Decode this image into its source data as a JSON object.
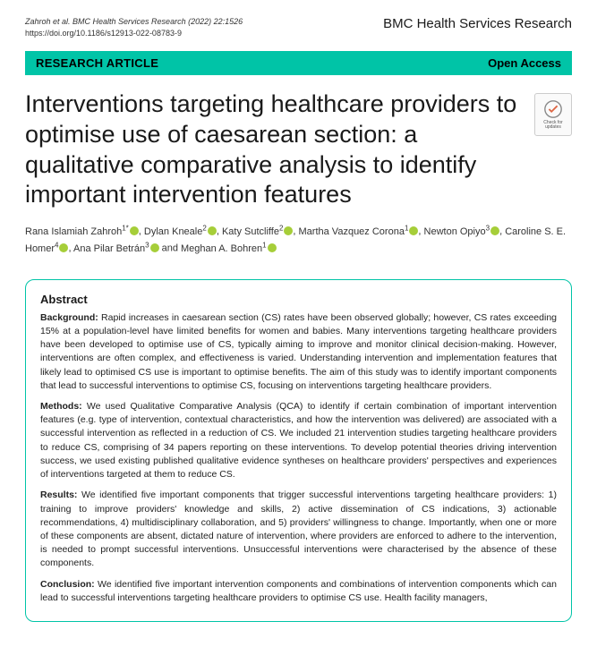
{
  "header": {
    "citation_line1": "Zahroh et al. BMC Health Services Research          (2022) 22:1526",
    "doi": "https://doi.org/10.1186/s12913-022-08783-9",
    "journal": "BMC Health Services Research"
  },
  "banner": {
    "article_type": "RESEARCH ARTICLE",
    "access": "Open Access"
  },
  "title": "Interventions targeting healthcare providers to optimise use of caesarean section: a qualitative comparative analysis to identify important intervention features",
  "check_updates": {
    "label": "Check for updates"
  },
  "authors": [
    {
      "name": "Rana Islamiah Zahroh",
      "aff": "1*",
      "orcid": true
    },
    {
      "name": "Dylan Kneale",
      "aff": "2",
      "orcid": true
    },
    {
      "name": "Katy Sutcliffe",
      "aff": "2",
      "orcid": true
    },
    {
      "name": "Martha Vazquez Corona",
      "aff": "1",
      "orcid": true
    },
    {
      "name": "Newton Opiyo",
      "aff": "3",
      "orcid": true
    },
    {
      "name": "Caroline S. E. Homer",
      "aff": "4",
      "orcid": true
    },
    {
      "name": "Ana Pilar Betrán",
      "aff": "3",
      "orcid": true
    },
    {
      "name": "Meghan A. Bohren",
      "aff": "1",
      "orcid": true
    }
  ],
  "abstract": {
    "heading": "Abstract",
    "sections": [
      {
        "label": "Background:",
        "text": "Rapid increases in caesarean section (CS) rates have been observed globally; however, CS rates exceeding 15% at a population-level have limited benefits for women and babies. Many interventions targeting healthcare providers have been developed to optimise use of CS, typically aiming to improve and monitor clinical decision-making. However, interventions are often complex, and effectiveness is varied. Understanding intervention and implementation features that likely lead to optimised CS use is important to optimise benefits. The aim of this study was to identify important components that lead to successful interventions to optimise CS, focusing on interventions targeting healthcare providers."
      },
      {
        "label": "Methods:",
        "text": "We used Qualitative Comparative Analysis (QCA) to identify if certain combination of important intervention features (e.g. type of intervention, contextual characteristics, and how the intervention was delivered) are associated with a successful intervention as reflected in a reduction of CS. We included 21 intervention studies targeting healthcare providers to reduce CS, comprising of 34 papers reporting on these interventions. To develop potential theories driving intervention success, we used existing published qualitative evidence syntheses on healthcare providers' perspectives and experiences of interventions targeted at them to reduce CS."
      },
      {
        "label": "Results:",
        "text": "We identified five important components that trigger successful interventions targeting healthcare providers: 1) training to improve providers' knowledge and skills, 2) active dissemination of CS indications, 3) actionable recommendations, 4) multidisciplinary collaboration, and 5) providers' willingness to change. Importantly, when one or more of these components are absent, dictated nature of intervention, where providers are enforced to adhere to the intervention, is needed to prompt successful interventions. Unsuccessful interventions were characterised by the absence of these components."
      },
      {
        "label": "Conclusion:",
        "text": "We identified five important intervention components and combinations of intervention components which can lead to successful interventions targeting healthcare providers to optimise CS use. Health facility managers,"
      }
    ]
  },
  "colors": {
    "accent": "#00c4a7",
    "orcid": "#a6ce39",
    "text": "#1a1a1a"
  }
}
